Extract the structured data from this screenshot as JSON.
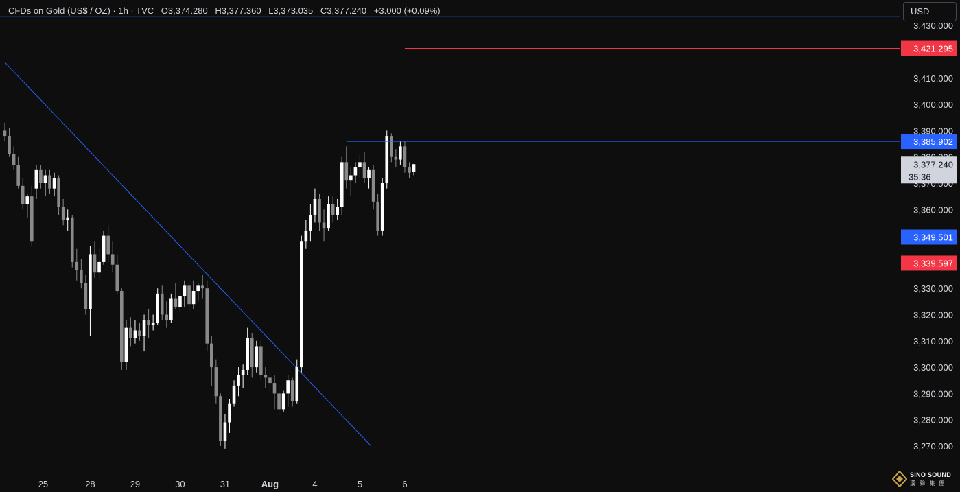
{
  "header": {
    "symbol": "CFDs on Gold (US$ / OZ) · 1h · TVC",
    "open": "O3,374.280",
    "high": "H3,377.360",
    "low": "L3,373.035",
    "close": "C3,377.240",
    "change": "+3.000 (+0.09%)"
  },
  "currency_button": "USD",
  "logo": {
    "name": "SINO SOUND",
    "subtitle": "漢 聲 集 團"
  },
  "colors": {
    "background": "#0e0e0e",
    "candle_up": "#ffffff",
    "candle_down": "#8a8a8a",
    "blue_line": "#2962ff",
    "red_line": "#f23645",
    "axis_text": "#d1d4dc"
  },
  "chart_data": {
    "type": "candlestick",
    "symbol": "CFDs on Gold (US$ / OZ)",
    "timeframe": "1h",
    "ylim": [
      3263,
      3435
    ],
    "y_ticks": [
      3270,
      3280,
      3290,
      3300,
      3310,
      3320,
      3330,
      3340,
      3350,
      3360,
      3370,
      3380,
      3390,
      3400,
      3410,
      3420,
      3430
    ],
    "y_tick_labels": [
      "3,270.000",
      "3,280.000",
      "3,290.000",
      "3,300.000",
      "3,310.000",
      "3,320.000",
      "3,330.000",
      "",
      "",
      "3,360.000",
      "3,370.000",
      "3,380.000",
      "3,390.000",
      "3,400.000",
      "3,410.000",
      "",
      "3,430.000"
    ],
    "x_labels": [
      "25",
      "28",
      "29",
      "30",
      "31",
      "Aug",
      "4",
      "5",
      "6"
    ],
    "x_label_bars": [
      9,
      19,
      29,
      39,
      49,
      59,
      69,
      79,
      89
    ],
    "levels": [
      {
        "label": "3,421.295",
        "value": 3421.295,
        "color": "red",
        "from_bar": 89
      },
      {
        "label": "3,385.902",
        "value": 3385.902,
        "color": "blue",
        "from_bar": 76
      },
      {
        "label": "3,349.501",
        "value": 3349.501,
        "color": "blue",
        "from_bar": 85
      },
      {
        "label": "3,339.597",
        "value": 3339.597,
        "color": "red",
        "from_bar": 90
      }
    ],
    "current_price": {
      "label": "3,377.240",
      "countdown": "35:36",
      "value": 3377.24
    },
    "trendline": {
      "start": [
        0,
        3416
      ],
      "end": [
        81.5,
        3270
      ]
    },
    "top_line": 3433,
    "candles": [
      [
        3390,
        3393,
        3386,
        3388
      ],
      [
        3388,
        3391,
        3380,
        3381
      ],
      [
        3381,
        3384,
        3375,
        3377
      ],
      [
        3377,
        3380,
        3368,
        3369
      ],
      [
        3369,
        3372,
        3360,
        3362
      ],
      [
        3362,
        3366,
        3357,
        3365
      ],
      [
        3365,
        3369,
        3346,
        3348
      ],
      [
        3368,
        3377,
        3364,
        3375
      ],
      [
        3375,
        3377,
        3368,
        3370
      ],
      [
        3370,
        3375,
        3365,
        3373
      ],
      [
        3373,
        3375,
        3366,
        3368
      ],
      [
        3368,
        3374,
        3365,
        3372
      ],
      [
        3372,
        3373,
        3358,
        3361
      ],
      [
        3361,
        3364,
        3354,
        3356
      ],
      [
        3356,
        3360,
        3352,
        3357
      ],
      [
        3357,
        3358,
        3338,
        3340
      ],
      [
        3340,
        3345,
        3333,
        3337
      ],
      [
        3337,
        3341,
        3330,
        3332
      ],
      [
        3332,
        3335,
        3320,
        3322
      ],
      [
        3322,
        3346,
        3312,
        3343
      ],
      [
        3343,
        3348,
        3334,
        3336
      ],
      [
        3336,
        3345,
        3333,
        3340
      ],
      [
        3340,
        3352,
        3339,
        3350
      ],
      [
        3350,
        3354,
        3340,
        3343
      ],
      [
        3343,
        3348,
        3336,
        3339
      ],
      [
        3339,
        3343,
        3328,
        3329
      ],
      [
        3329,
        3330,
        3299,
        3302
      ],
      [
        3302,
        3318,
        3299,
        3315
      ],
      [
        3315,
        3319,
        3308,
        3311
      ],
      [
        3311,
        3318,
        3309,
        3314
      ],
      [
        3314,
        3317,
        3310,
        3312
      ],
      [
        3312,
        3320,
        3306,
        3318
      ],
      [
        3318,
        3322,
        3311,
        3316
      ],
      [
        3316,
        3320,
        3314,
        3317
      ],
      [
        3317,
        3330,
        3316,
        3328
      ],
      [
        3328,
        3331,
        3318,
        3320
      ],
      [
        3320,
        3325,
        3315,
        3318
      ],
      [
        3318,
        3328,
        3317,
        3326
      ],
      [
        3326,
        3332,
        3322,
        3323
      ],
      [
        3323,
        3328,
        3321,
        3327
      ],
      [
        3327,
        3333,
        3323,
        3331
      ],
      [
        3331,
        3333,
        3320,
        3324
      ],
      [
        3324,
        3333,
        3322,
        3329
      ],
      [
        3329,
        3332,
        3325,
        3331
      ],
      [
        3331,
        3335,
        3326,
        3330
      ],
      [
        3330,
        3333,
        3306,
        3309
      ],
      [
        3309,
        3312,
        3293,
        3300
      ],
      [
        3300,
        3303,
        3286,
        3289
      ],
      [
        3289,
        3290,
        3270,
        3272
      ],
      [
        3272,
        3282,
        3269,
        3279
      ],
      [
        3279,
        3288,
        3275,
        3286
      ],
      [
        3286,
        3295,
        3285,
        3293
      ],
      [
        3293,
        3300,
        3289,
        3297
      ],
      [
        3297,
        3301,
        3292,
        3299
      ],
      [
        3299,
        3315,
        3297,
        3311
      ],
      [
        3311,
        3313,
        3296,
        3300
      ],
      [
        3300,
        3310,
        3298,
        3308
      ],
      [
        3308,
        3310,
        3295,
        3297
      ],
      [
        3297,
        3300,
        3292,
        3296
      ],
      [
        3296,
        3299,
        3290,
        3294
      ],
      [
        3294,
        3297,
        3284,
        3290
      ],
      [
        3290,
        3293,
        3281,
        3284
      ],
      [
        3284,
        3291,
        3283,
        3290
      ],
      [
        3290,
        3297,
        3285,
        3295
      ],
      [
        3295,
        3296,
        3285,
        3287
      ],
      [
        3287,
        3303,
        3286,
        3300
      ],
      [
        3300,
        3350,
        3298,
        3348
      ],
      [
        3348,
        3356,
        3345,
        3352
      ],
      [
        3352,
        3362,
        3348,
        3358
      ],
      [
        3358,
        3368,
        3355,
        3364
      ],
      [
        3364,
        3366,
        3352,
        3355
      ],
      [
        3355,
        3360,
        3348,
        3353
      ],
      [
        3353,
        3365,
        3352,
        3362
      ],
      [
        3362,
        3365,
        3355,
        3358
      ],
      [
        3358,
        3364,
        3356,
        3361
      ],
      [
        3361,
        3380,
        3358,
        3378
      ],
      [
        3378,
        3384,
        3368,
        3371
      ],
      [
        3371,
        3376,
        3365,
        3373
      ],
      [
        3373,
        3378,
        3370,
        3376
      ],
      [
        3376,
        3381,
        3372,
        3378
      ],
      [
        3378,
        3382,
        3370,
        3372
      ],
      [
        3372,
        3376,
        3368,
        3375
      ],
      [
        3375,
        3377,
        3360,
        3363
      ],
      [
        3363,
        3366,
        3350,
        3352
      ],
      [
        3352,
        3372,
        3350,
        3370
      ],
      [
        3370,
        3390,
        3368,
        3388
      ],
      [
        3388,
        3389,
        3378,
        3380
      ],
      [
        3380,
        3383,
        3376,
        3379
      ],
      [
        3379,
        3386,
        3377,
        3384
      ],
      [
        3384,
        3386,
        3374,
        3376
      ],
      [
        3376,
        3378,
        3372,
        3374
      ],
      [
        3374.28,
        3377.36,
        3373.035,
        3377.24
      ]
    ]
  }
}
